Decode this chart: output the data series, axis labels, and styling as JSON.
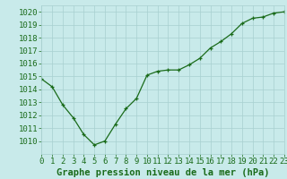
{
  "x": [
    0,
    1,
    2,
    3,
    4,
    5,
    6,
    7,
    8,
    9,
    10,
    11,
    12,
    13,
    14,
    15,
    16,
    17,
    18,
    19,
    20,
    21,
    22,
    23
  ],
  "y": [
    1014.8,
    1014.2,
    1012.8,
    1011.8,
    1010.5,
    1009.7,
    1010.0,
    1011.3,
    1012.5,
    1013.3,
    1015.1,
    1015.4,
    1015.5,
    1015.5,
    1015.9,
    1016.4,
    1017.2,
    1017.7,
    1018.3,
    1019.1,
    1019.5,
    1019.6,
    1019.9,
    1020.0
  ],
  "ylim": [
    1009.0,
    1020.5
  ],
  "yticks": [
    1010,
    1011,
    1012,
    1013,
    1014,
    1015,
    1016,
    1017,
    1018,
    1019,
    1020
  ],
  "xlim": [
    0,
    23
  ],
  "xticks": [
    0,
    1,
    2,
    3,
    4,
    5,
    6,
    7,
    8,
    9,
    10,
    11,
    12,
    13,
    14,
    15,
    16,
    17,
    18,
    19,
    20,
    21,
    22,
    23
  ],
  "xlabel": "Graphe pression niveau de la mer (hPa)",
  "line_color": "#1a6b1a",
  "marker": "+",
  "marker_color": "#1a6b1a",
  "bg_color": "#c8eaea",
  "grid_color": "#a8d0d0",
  "tick_label_color": "#1a6b1a",
  "xlabel_color": "#1a6b1a",
  "xlabel_fontsize": 7.5,
  "ytick_fontsize": 6.5,
  "xtick_fontsize": 6.5,
  "linewidth": 0.9,
  "markersize": 3.5,
  "markeredgewidth": 0.9
}
